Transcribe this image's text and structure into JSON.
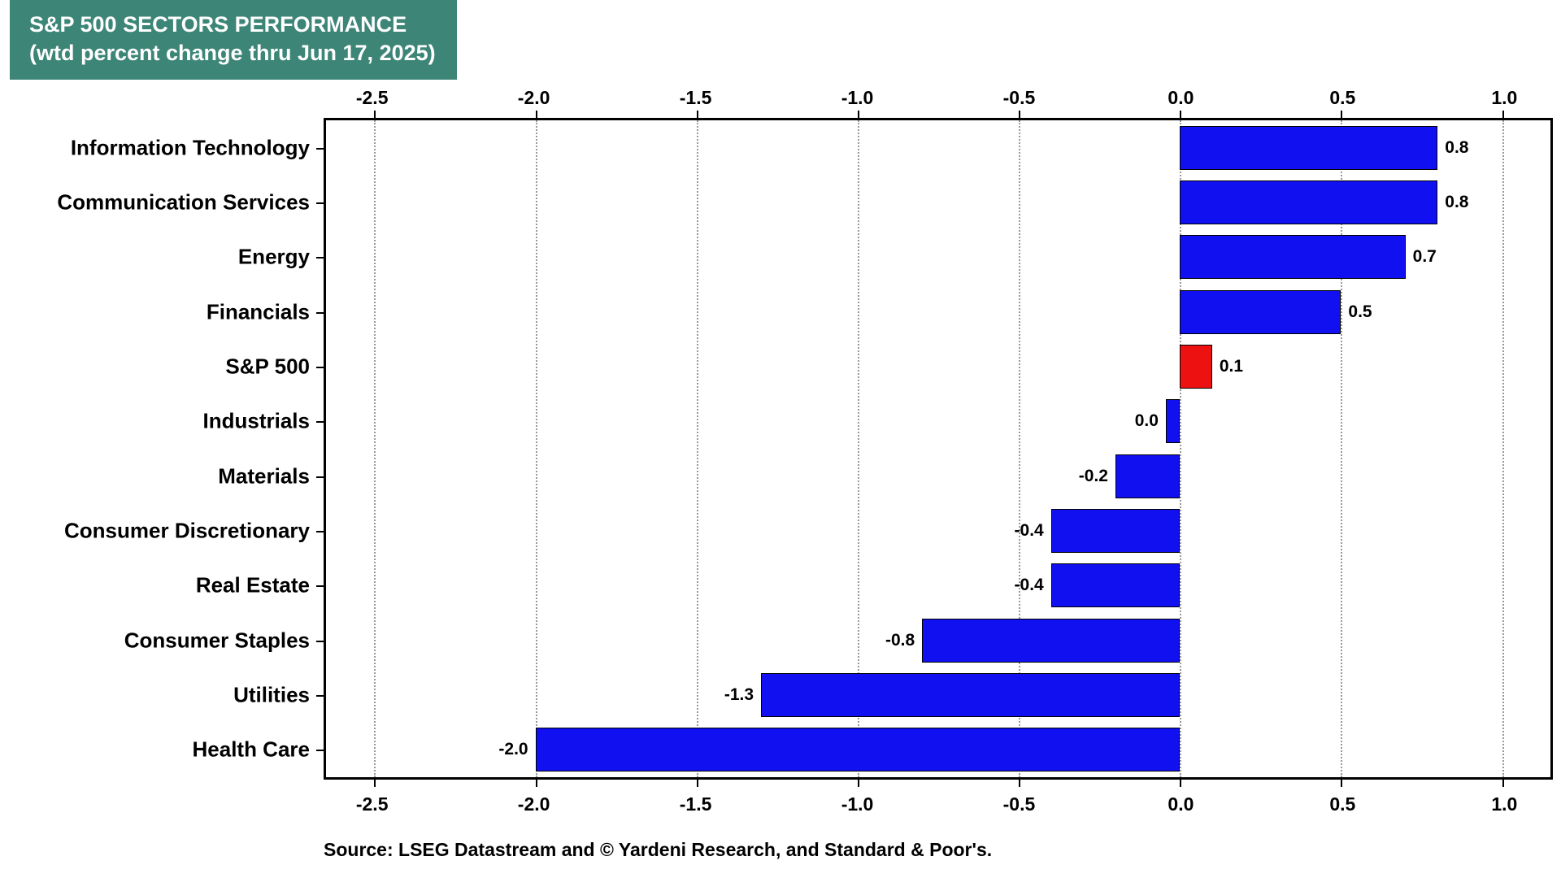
{
  "title": {
    "line1": "S&P 500 SECTORS PERFORMANCE",
    "line2": "(wtd percent change thru Jun 17, 2025)"
  },
  "source": {
    "text": "Source: LSEG Datastream and © Yardeni Research, and Standard & Poor's."
  },
  "colors": {
    "title_bg": "#3C8577",
    "title_text": "#FFFFFF",
    "bar_blue": "#1010F0",
    "bar_red": "#EE1111",
    "grid": "#999999",
    "axis": "#000000"
  },
  "chart_data": {
    "type": "bar",
    "orientation": "horizontal",
    "title": "S&P 500 SECTORS PERFORMANCE (wtd percent change thru Jun 17, 2025)",
    "xlabel": "wtd percent change",
    "xlim": [
      -2.65,
      1.15
    ],
    "ticks": [
      -2.5,
      -2.0,
      -1.5,
      -1.0,
      -0.5,
      0.0,
      0.5,
      1.0
    ],
    "tick_labels": [
      "-2.5",
      "-2.0",
      "-1.5",
      "-1.0",
      "-0.5",
      "0.0",
      "0.5",
      "1.0"
    ],
    "grid": "dotted-vertical",
    "legend": "none",
    "items": [
      {
        "label": "Information Technology",
        "value": 0.8,
        "display": "0.8",
        "color": "blue"
      },
      {
        "label": "Communication Services",
        "value": 0.8,
        "display": "0.8",
        "color": "blue"
      },
      {
        "label": "Energy",
        "value": 0.7,
        "display": "0.7",
        "color": "blue"
      },
      {
        "label": "Financials",
        "value": 0.5,
        "display": "0.5",
        "color": "blue"
      },
      {
        "label": "S&P 500",
        "value": 0.1,
        "display": "0.1",
        "color": "red"
      },
      {
        "label": "Industrials",
        "value": 0.0,
        "display": "0.0",
        "color": "blue"
      },
      {
        "label": "Materials",
        "value": -0.2,
        "display": "-0.2",
        "color": "blue"
      },
      {
        "label": "Consumer Discretionary",
        "value": -0.4,
        "display": "-0.4",
        "color": "blue"
      },
      {
        "label": "Real Estate",
        "value": -0.4,
        "display": "-0.4",
        "color": "blue"
      },
      {
        "label": "Consumer Staples",
        "value": -0.8,
        "display": "-0.8",
        "color": "blue"
      },
      {
        "label": "Utilities",
        "value": -1.3,
        "display": "-1.3",
        "color": "blue"
      },
      {
        "label": "Health Care",
        "value": -2.0,
        "display": "-2.0",
        "color": "blue"
      }
    ]
  }
}
